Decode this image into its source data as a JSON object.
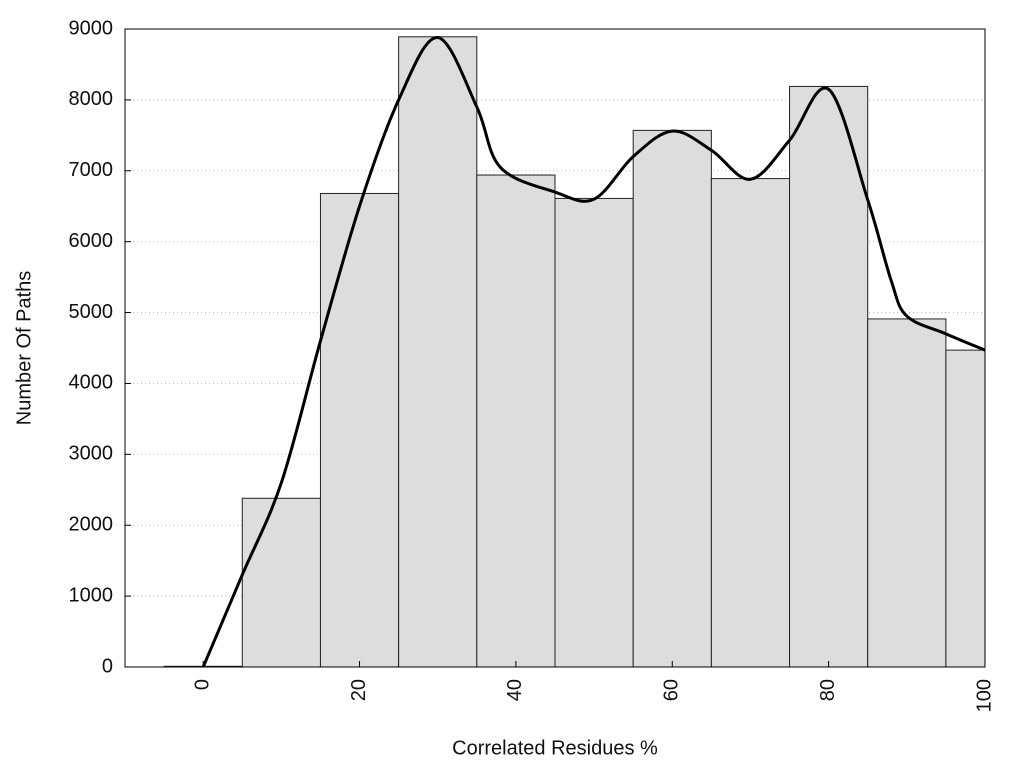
{
  "chart_data": {
    "type": "histogram",
    "xlabel": "Correlated Residues %",
    "ylabel": "Number Of Paths",
    "bins": [
      -5,
      5,
      15,
      25,
      35,
      45,
      55,
      65,
      75,
      85,
      95,
      105
    ],
    "counts": [
      10,
      2380,
      6680,
      8890,
      6940,
      6610,
      7570,
      6890,
      8190,
      4910,
      4470
    ],
    "color": "#dddddd",
    "curve": {
      "color": "#000000",
      "x": [
        0,
        5,
        10,
        15,
        20,
        25,
        30,
        35,
        38,
        45,
        50,
        55,
        60,
        65,
        70,
        75,
        80,
        85,
        88,
        90,
        95,
        100
      ],
      "y": [
        0,
        1300,
        2600,
        4600,
        6500,
        8000,
        8880,
        7900,
        7050,
        6700,
        6600,
        7200,
        7560,
        7290,
        6880,
        7430,
        8150,
        6590,
        5450,
        4950,
        4700,
        4470
      ]
    },
    "xlim": [
      -10,
      100
    ],
    "ylim": [
      0,
      9000
    ],
    "xticks": [
      0,
      20,
      40,
      60,
      80,
      100
    ],
    "yticks": [
      0,
      1000,
      2000,
      3000,
      4000,
      5000,
      6000,
      7000,
      8000,
      9000
    ],
    "grid": true
  }
}
